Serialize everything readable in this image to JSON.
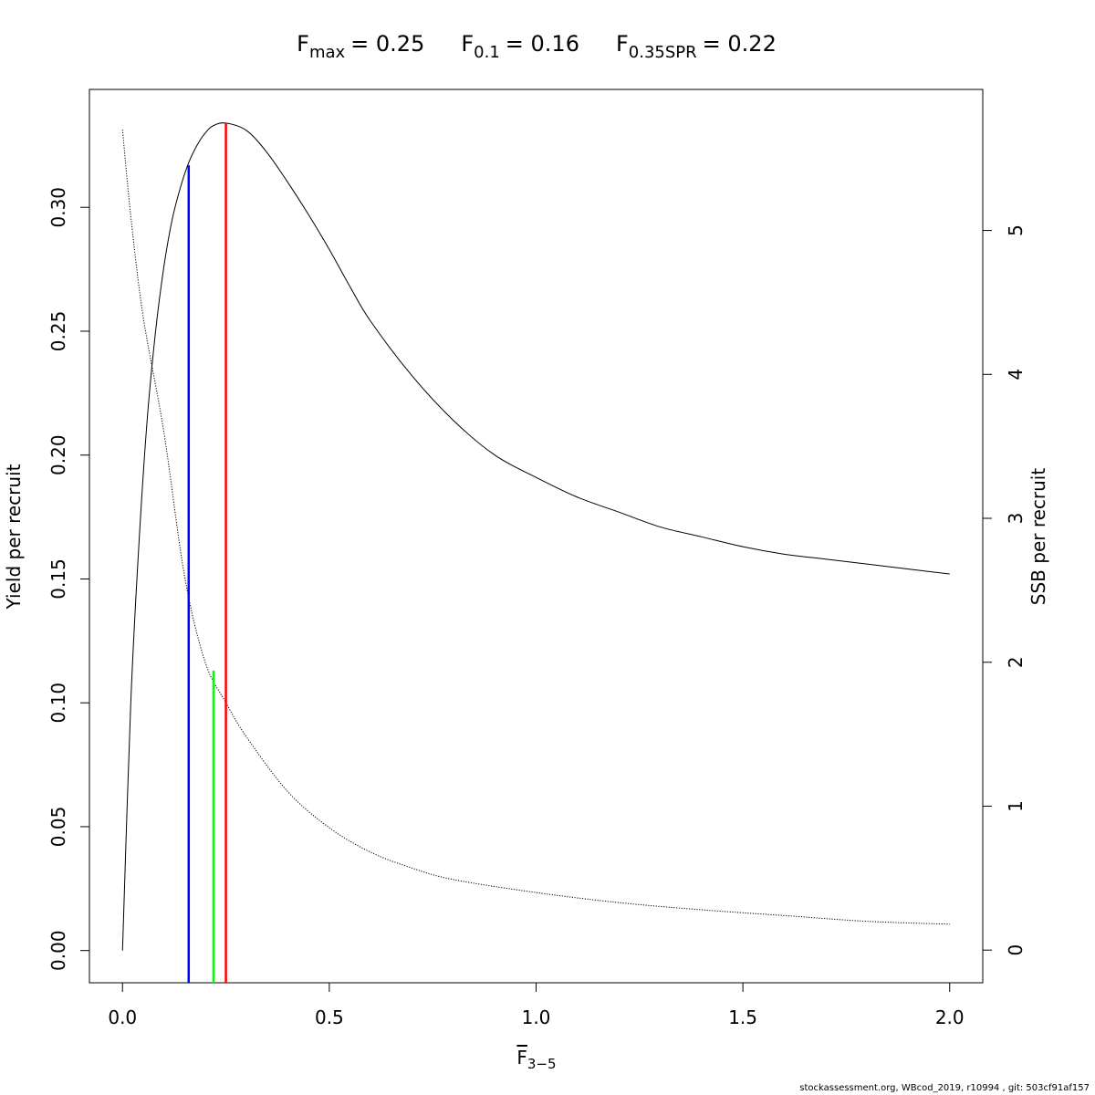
{
  "chart_data": {
    "type": "line",
    "title_parts": [
      {
        "base": "F",
        "sub": "max",
        "value": "= 0.25"
      },
      {
        "base": "F",
        "sub": "0.1",
        "value": "= 0.16"
      },
      {
        "base": "F",
        "sub": "0.35SPR",
        "value": "= 0.22"
      }
    ],
    "xlabel": {
      "base": "F",
      "sub": "3−5"
    },
    "ylabel_left": "Yield per recruit",
    "ylabel_right": "SSB per recruit",
    "xlim": [
      -0.08,
      2.08
    ],
    "ylim_left": [
      -0.013,
      0.3476
    ],
    "ylim_right": [
      -0.227,
      5.98
    ],
    "x_ticks": [
      "0.0",
      "0.5",
      "1.0",
      "1.5",
      "2.0"
    ],
    "y_left_ticks": [
      "0.00",
      "0.05",
      "0.10",
      "0.15",
      "0.20",
      "0.25",
      "0.30"
    ],
    "y_right_ticks": [
      "0",
      "1",
      "2",
      "3",
      "4",
      "5"
    ],
    "series": [
      {
        "axis": "left",
        "style": "solid",
        "color": "#000000",
        "x": [
          0,
          0.02,
          0.04,
          0.06,
          0.08,
          0.1,
          0.12,
          0.14,
          0.16,
          0.18,
          0.2,
          0.22,
          0.25,
          0.3,
          0.35,
          0.4,
          0.45,
          0.5,
          0.55,
          0.6,
          0.7,
          0.8,
          0.9,
          1.0,
          1.1,
          1.2,
          1.3,
          1.4,
          1.5,
          1.6,
          1.7,
          1.8,
          1.9,
          2.0
        ],
        "y": [
          0,
          0.1,
          0.165,
          0.215,
          0.25,
          0.276,
          0.295,
          0.308,
          0.318,
          0.325,
          0.33,
          0.333,
          0.334,
          0.331,
          0.322,
          0.31,
          0.297,
          0.283,
          0.268,
          0.254,
          0.232,
          0.214,
          0.2,
          0.191,
          0.183,
          0.177,
          0.171,
          0.167,
          0.163,
          0.16,
          0.158,
          0.156,
          0.154,
          0.152
        ]
      },
      {
        "axis": "right",
        "style": "dotted",
        "color": "#000000",
        "x": [
          0,
          0.02,
          0.05,
          0.1,
          0.15,
          0.2,
          0.25,
          0.3,
          0.4,
          0.5,
          0.6,
          0.7,
          0.8,
          1.0,
          1.2,
          1.4,
          1.6,
          1.8,
          2.0
        ],
        "y": [
          5.7,
          5.1,
          4.4,
          3.6,
          2.6,
          2.0,
          1.72,
          1.48,
          1.1,
          0.85,
          0.68,
          0.57,
          0.49,
          0.4,
          0.33,
          0.28,
          0.24,
          0.2,
          0.18
        ]
      }
    ],
    "reference_lines": [
      {
        "name": "Fmax",
        "x": 0.25,
        "y": 0.334,
        "color": "#ff0000"
      },
      {
        "name": "F0.1",
        "x": 0.16,
        "y": 0.317,
        "color": "#0000ff"
      },
      {
        "name": "F0.35SPR",
        "x": 0.22,
        "y": 0.113,
        "color": "#00ff00"
      }
    ]
  },
  "footer": "stockassessment.org, WBcod_2019, r10994 , git: 503cf91af157"
}
